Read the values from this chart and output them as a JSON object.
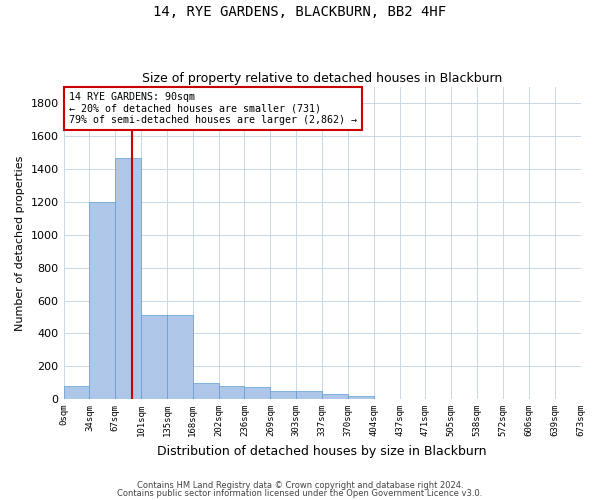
{
  "title1": "14, RYE GARDENS, BLACKBURN, BB2 4HF",
  "title2": "Size of property relative to detached houses in Blackburn",
  "xlabel": "Distribution of detached houses by size in Blackburn",
  "ylabel": "Number of detached properties",
  "bin_labels": [
    "0sqm",
    "34sqm",
    "67sqm",
    "101sqm",
    "135sqm",
    "168sqm",
    "202sqm",
    "236sqm",
    "269sqm",
    "303sqm",
    "337sqm",
    "370sqm",
    "404sqm",
    "437sqm",
    "471sqm",
    "505sqm",
    "538sqm",
    "572sqm",
    "606sqm",
    "639sqm",
    "673sqm"
  ],
  "bar_heights": [
    80,
    1200,
    1470,
    510,
    510,
    100,
    80,
    75,
    50,
    50,
    30,
    20,
    0,
    0,
    0,
    0,
    0,
    0,
    0,
    0
  ],
  "bar_color": "#aec6e8",
  "bar_edge_color": "#5a9fd4",
  "property_line_x": 2.65,
  "annotation_line0": "14 RYE GARDENS: 90sqm",
  "annotation_line1": "← 20% of detached houses are smaller (731)",
  "annotation_line2": "79% of semi-detached houses are larger (2,862) →",
  "annotation_box_color": "#ffffff",
  "annotation_box_edge": "#cc0000",
  "red_line_color": "#cc0000",
  "ylim": [
    0,
    1900
  ],
  "yticks": [
    0,
    200,
    400,
    600,
    800,
    1000,
    1200,
    1400,
    1600,
    1800
  ],
  "footer1": "Contains HM Land Registry data © Crown copyright and database right 2024.",
  "footer2": "Contains public sector information licensed under the Open Government Licence v3.0.",
  "bg_color": "#ffffff",
  "grid_color": "#c8d8e8"
}
